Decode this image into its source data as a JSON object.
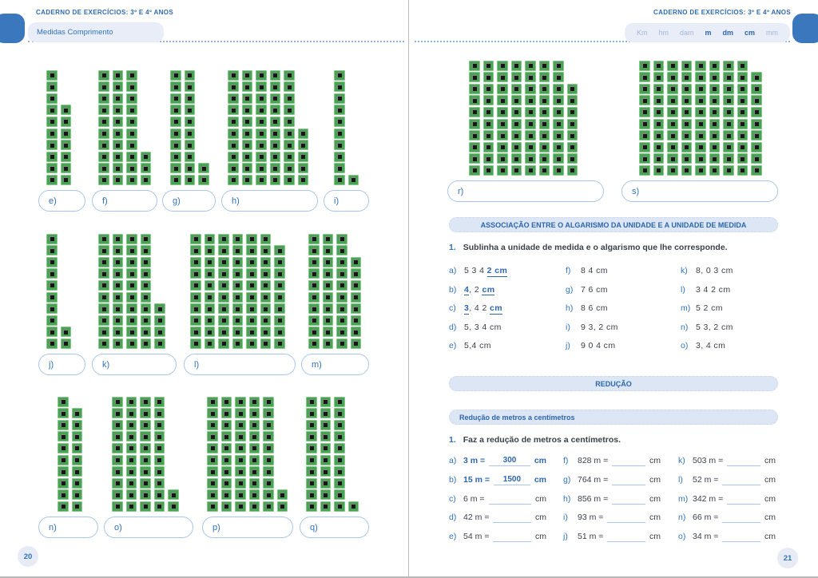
{
  "book": {
    "header": "CADERNO DE EXERCÍCIOS: 3º E 4º ANOS"
  },
  "left_page": {
    "tab_label": "Medidas Comprimento",
    "page_number": "20",
    "rows": [
      {
        "groups": [
          {
            "label": "e)",
            "rods": [
              10,
              7
            ]
          },
          {
            "label": "f)",
            "rods": [
              10,
              10,
              10,
              3
            ]
          },
          {
            "label": "g)",
            "rods": [
              10,
              10,
              2
            ]
          },
          {
            "label": "h)",
            "rods": [
              10,
              10,
              10,
              10,
              10,
              5
            ]
          },
          {
            "label": "i)",
            "rods": [
              10,
              1
            ]
          }
        ]
      },
      {
        "groups": [
          {
            "label": "j)",
            "rods": [
              10,
              2
            ]
          },
          {
            "label": "k)",
            "rods": [
              10,
              10,
              10,
              10,
              4
            ]
          },
          {
            "label": "l)",
            "rods": [
              10,
              10,
              10,
              10,
              10,
              10,
              9
            ]
          },
          {
            "label": "m)",
            "rods": [
              10,
              10,
              10,
              8
            ]
          }
        ]
      },
      {
        "groups": [
          {
            "label": "n)",
            "rods": [
              10,
              9
            ]
          },
          {
            "label": "o)",
            "rods": [
              10,
              10,
              10,
              10,
              2
            ]
          },
          {
            "label": "p)",
            "rods": [
              10,
              10,
              10,
              10,
              10,
              2
            ]
          },
          {
            "label": "q)",
            "rods": [
              10,
              10,
              10,
              1
            ]
          }
        ]
      }
    ]
  },
  "right_page": {
    "page_number": "21",
    "units": [
      {
        "label": "Km",
        "active": false
      },
      {
        "label": "hm",
        "active": false
      },
      {
        "label": "dam",
        "active": false
      },
      {
        "label": "m",
        "active": true
      },
      {
        "label": "dm",
        "active": true
      },
      {
        "label": "cm",
        "active": true
      },
      {
        "label": "mm",
        "active": false
      }
    ],
    "block_groups": [
      {
        "label": "r)",
        "rods": [
          10,
          10,
          10,
          10,
          10,
          10,
          10,
          8
        ]
      },
      {
        "label": "s)",
        "rods": [
          10,
          10,
          10,
          10,
          10,
          10,
          10,
          10,
          9
        ]
      }
    ],
    "association": {
      "banner": "ASSOCIAÇÃO ENTRE O ALGARISMO DA UNIDADE E A UNIDADE DE MEDIDA",
      "number": "1.",
      "instruction": "Sublinha a unidade de medida e o algarismo que lhe corresponde.",
      "columns": [
        [
          {
            "label": "a)",
            "parts": [
              {
                "t": "5 3 4 "
              },
              {
                "t": "2 cm",
                "u": true
              }
            ]
          },
          {
            "label": "b)",
            "parts": [
              {
                "t": "4",
                "u": true
              },
              {
                "t": ", 2 "
              },
              {
                "t": "cm",
                "u": true
              }
            ]
          },
          {
            "label": "c)",
            "parts": [
              {
                "t": "3",
                "u": true
              },
              {
                "t": ", 4 2 "
              },
              {
                "t": "cm",
                "u": true
              }
            ]
          },
          {
            "label": "d)",
            "parts": [
              {
                "t": "5, 3 4 cm"
              }
            ]
          },
          {
            "label": "e)",
            "parts": [
              {
                "t": "5,4 cm"
              }
            ]
          }
        ],
        [
          {
            "label": "f)",
            "parts": [
              {
                "t": "8 4 cm"
              }
            ]
          },
          {
            "label": "g)",
            "parts": [
              {
                "t": "7 6 cm"
              }
            ]
          },
          {
            "label": "h)",
            "parts": [
              {
                "t": "8 6 cm"
              }
            ]
          },
          {
            "label": "i)",
            "parts": [
              {
                "t": "9 3, 2 cm"
              }
            ]
          },
          {
            "label": "j)",
            "parts": [
              {
                "t": "9 0 4 cm"
              }
            ]
          }
        ],
        [
          {
            "label": "k)",
            "parts": [
              {
                "t": "8, 0 3 cm"
              }
            ]
          },
          {
            "label": "l)",
            "parts": [
              {
                "t": "3 4 2 cm"
              }
            ]
          },
          {
            "label": "m)",
            "parts": [
              {
                "t": "5 2 cm"
              }
            ]
          },
          {
            "label": "n)",
            "parts": [
              {
                "t": "5 3, 2 cm"
              }
            ]
          },
          {
            "label": "o)",
            "parts": [
              {
                "t": "3, 4 cm"
              }
            ]
          }
        ]
      ]
    },
    "reduction": {
      "banner": "REDUÇÃO",
      "sub_banner": "Redução de metros a centímetros",
      "number": "1.",
      "instruction": "Faz a redução de metros a centímetros.",
      "columns": [
        [
          {
            "label": "a)",
            "q": "3 m =",
            "answer": "300",
            "unit": "cm",
            "answered": true
          },
          {
            "label": "b)",
            "q": "15 m =",
            "answer": "1500",
            "unit": "cm",
            "answered": true
          },
          {
            "label": "c)",
            "q": "6 m =",
            "answer": "",
            "unit": "cm",
            "answered": false
          },
          {
            "label": "d)",
            "q": "42 m =",
            "answer": "",
            "unit": "cm",
            "answered": false
          },
          {
            "label": "e)",
            "q": "54 m =",
            "answer": "",
            "unit": "cm",
            "answered": false
          }
        ],
        [
          {
            "label": "f)",
            "q": "828 m =",
            "answer": "",
            "unit": "cm",
            "answered": false
          },
          {
            "label": "g)",
            "q": "764 m =",
            "answer": "",
            "unit": "cm",
            "answered": false
          },
          {
            "label": "h)",
            "q": "856 m =",
            "answer": "",
            "unit": "cm",
            "answered": false
          },
          {
            "label": "i)",
            "q": "93 m =",
            "answer": "",
            "unit": "cm",
            "answered": false
          },
          {
            "label": "j)",
            "q": "51 m =",
            "answer": "",
            "unit": "cm",
            "answered": false
          }
        ],
        [
          {
            "label": "k)",
            "q": "503 m =",
            "answer": "",
            "unit": "cm",
            "answered": false
          },
          {
            "label": "l)",
            "q": "52 m =",
            "answer": "",
            "unit": "cm",
            "answered": false
          },
          {
            "label": "m)",
            "q": "342 m =",
            "answer": "",
            "unit": "cm",
            "answered": false
          },
          {
            "label": "n)",
            "q": "66 m =",
            "answer": "",
            "unit": "cm",
            "answered": false
          },
          {
            "label": "o)",
            "q": "34 m =",
            "answer": "",
            "unit": "cm",
            "answered": false
          }
        ]
      ]
    },
    "colors": {
      "accent_blue": "#3173b9",
      "banner_bg": "#dce6f4",
      "block_green": "#4ca254",
      "bookmark_blue": "#3a77bc"
    }
  }
}
